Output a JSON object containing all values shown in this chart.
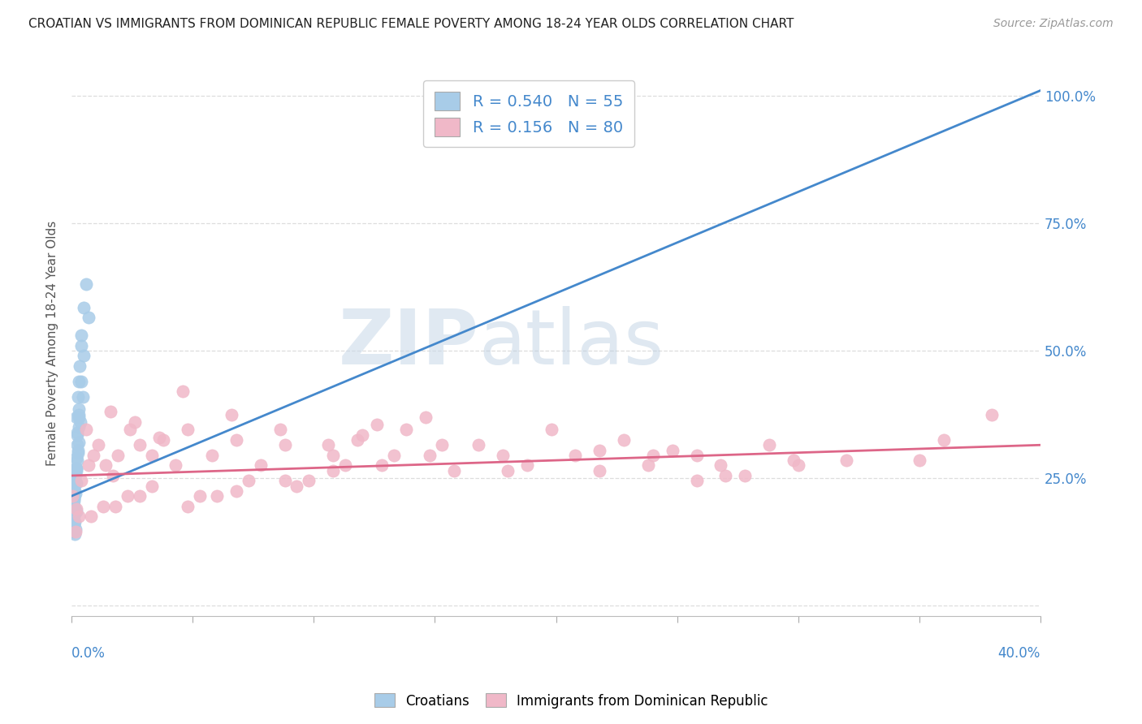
{
  "title": "CROATIAN VS IMMIGRANTS FROM DOMINICAN REPUBLIC FEMALE POVERTY AMONG 18-24 YEAR OLDS CORRELATION CHART",
  "source": "Source: ZipAtlas.com",
  "ylabel": "Female Poverty Among 18-24 Year Olds",
  "yticks": [
    0.0,
    0.25,
    0.5,
    0.75,
    1.0
  ],
  "ytick_labels": [
    "",
    "25.0%",
    "50.0%",
    "75.0%",
    "100.0%"
  ],
  "watermark_ZIP": "ZIP",
  "watermark_atlas": "atlas",
  "blue_R": 0.54,
  "blue_N": 55,
  "pink_R": 0.156,
  "pink_N": 80,
  "blue_label": "Croatians",
  "pink_label": "Immigrants from Dominican Republic",
  "blue_color": "#a8cce8",
  "pink_color": "#f0b8c8",
  "blue_line_color": "#4488cc",
  "pink_line_color": "#dd6688",
  "background_color": "#ffffff",
  "grid_color": "#dddddd",
  "xlim": [
    0.0,
    0.4
  ],
  "ylim": [
    -0.02,
    1.05
  ],
  "blue_line_x0": 0.0,
  "blue_line_y0": 0.215,
  "blue_line_x1": 0.4,
  "blue_line_y1": 1.01,
  "pink_line_x0": 0.0,
  "pink_line_y0": 0.255,
  "pink_line_x1": 0.4,
  "pink_line_y1": 0.315,
  "blue_x": [
    0.0005,
    0.001,
    0.0008,
    0.0015,
    0.001,
    0.0006,
    0.0004,
    0.002,
    0.0012,
    0.0009,
    0.0025,
    0.002,
    0.003,
    0.0015,
    0.001,
    0.0005,
    0.0028,
    0.0022,
    0.0018,
    0.001,
    0.004,
    0.005,
    0.0032,
    0.0026,
    0.002,
    0.006,
    0.004,
    0.0012,
    0.0006,
    0.0018,
    0.001,
    0.0024,
    0.003,
    0.004,
    0.005,
    0.007,
    0.0016,
    0.0011,
    0.0022,
    0.003,
    0.0007,
    0.0013,
    0.0019,
    0.0008,
    0.0014,
    0.0017,
    0.0023,
    0.003,
    0.0035,
    0.001,
    0.0045,
    0.0018,
    0.001,
    0.0026,
    0.003
  ],
  "blue_y": [
    0.2,
    0.175,
    0.16,
    0.15,
    0.215,
    0.185,
    0.17,
    0.24,
    0.14,
    0.21,
    0.3,
    0.27,
    0.44,
    0.22,
    0.195,
    0.18,
    0.37,
    0.34,
    0.27,
    0.21,
    0.53,
    0.585,
    0.47,
    0.41,
    0.37,
    0.63,
    0.51,
    0.245,
    0.19,
    0.29,
    0.215,
    0.335,
    0.385,
    0.44,
    0.49,
    0.565,
    0.27,
    0.235,
    0.315,
    0.375,
    0.145,
    0.165,
    0.185,
    0.205,
    0.225,
    0.255,
    0.285,
    0.32,
    0.36,
    0.195,
    0.41,
    0.265,
    0.235,
    0.305,
    0.35
  ],
  "pink_x": [
    0.0004,
    0.002,
    0.004,
    0.007,
    0.009,
    0.011,
    0.014,
    0.017,
    0.019,
    0.024,
    0.028,
    0.033,
    0.038,
    0.043,
    0.048,
    0.058,
    0.068,
    0.078,
    0.088,
    0.098,
    0.108,
    0.118,
    0.128,
    0.138,
    0.148,
    0.158,
    0.168,
    0.178,
    0.188,
    0.198,
    0.208,
    0.218,
    0.228,
    0.238,
    0.248,
    0.258,
    0.268,
    0.278,
    0.288,
    0.298,
    0.006,
    0.016,
    0.026,
    0.036,
    0.046,
    0.066,
    0.086,
    0.106,
    0.126,
    0.146,
    0.003,
    0.013,
    0.023,
    0.033,
    0.053,
    0.073,
    0.093,
    0.113,
    0.133,
    0.153,
    0.0015,
    0.008,
    0.018,
    0.028,
    0.048,
    0.068,
    0.088,
    0.108,
    0.218,
    0.258,
    0.06,
    0.12,
    0.18,
    0.24,
    0.3,
    0.36,
    0.32,
    0.27,
    0.35,
    0.38
  ],
  "pink_y": [
    0.215,
    0.19,
    0.245,
    0.275,
    0.295,
    0.315,
    0.275,
    0.255,
    0.295,
    0.345,
    0.315,
    0.295,
    0.325,
    0.275,
    0.345,
    0.295,
    0.325,
    0.275,
    0.315,
    0.245,
    0.295,
    0.325,
    0.275,
    0.345,
    0.295,
    0.265,
    0.315,
    0.295,
    0.275,
    0.345,
    0.295,
    0.265,
    0.325,
    0.275,
    0.305,
    0.295,
    0.275,
    0.255,
    0.315,
    0.285,
    0.345,
    0.38,
    0.36,
    0.33,
    0.42,
    0.375,
    0.345,
    0.315,
    0.355,
    0.37,
    0.175,
    0.195,
    0.215,
    0.235,
    0.215,
    0.245,
    0.235,
    0.275,
    0.295,
    0.315,
    0.145,
    0.175,
    0.195,
    0.215,
    0.195,
    0.225,
    0.245,
    0.265,
    0.305,
    0.245,
    0.215,
    0.335,
    0.265,
    0.295,
    0.275,
    0.325,
    0.285,
    0.255,
    0.285,
    0.375
  ]
}
